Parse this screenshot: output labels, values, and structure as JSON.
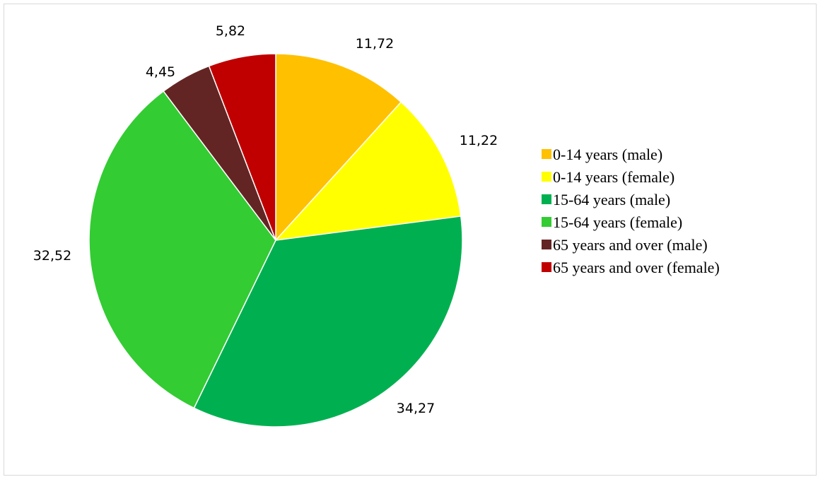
{
  "chart_data": {
    "type": "pie",
    "title": "",
    "legend_position": "right",
    "slices": [
      {
        "label": "0-14 years (male)",
        "value": 11.72,
        "display": "11,72",
        "color": "#FFC000"
      },
      {
        "label": "0-14 years (female)",
        "value": 11.22,
        "display": "11,22",
        "color": "#FFFF00"
      },
      {
        "label": "15-64 years (male)",
        "value": 34.27,
        "display": "34,27",
        "color": "#00B050"
      },
      {
        "label": "15-64 years (female)",
        "value": 32.52,
        "display": "32,52",
        "color": "#33CC33"
      },
      {
        "label": "65 years and over (male)",
        "value": 4.45,
        "display": "4,45",
        "color": "#632523"
      },
      {
        "label": "65 years and over (female)",
        "value": 5.82,
        "display": "5,82",
        "color": "#C00000"
      }
    ]
  }
}
